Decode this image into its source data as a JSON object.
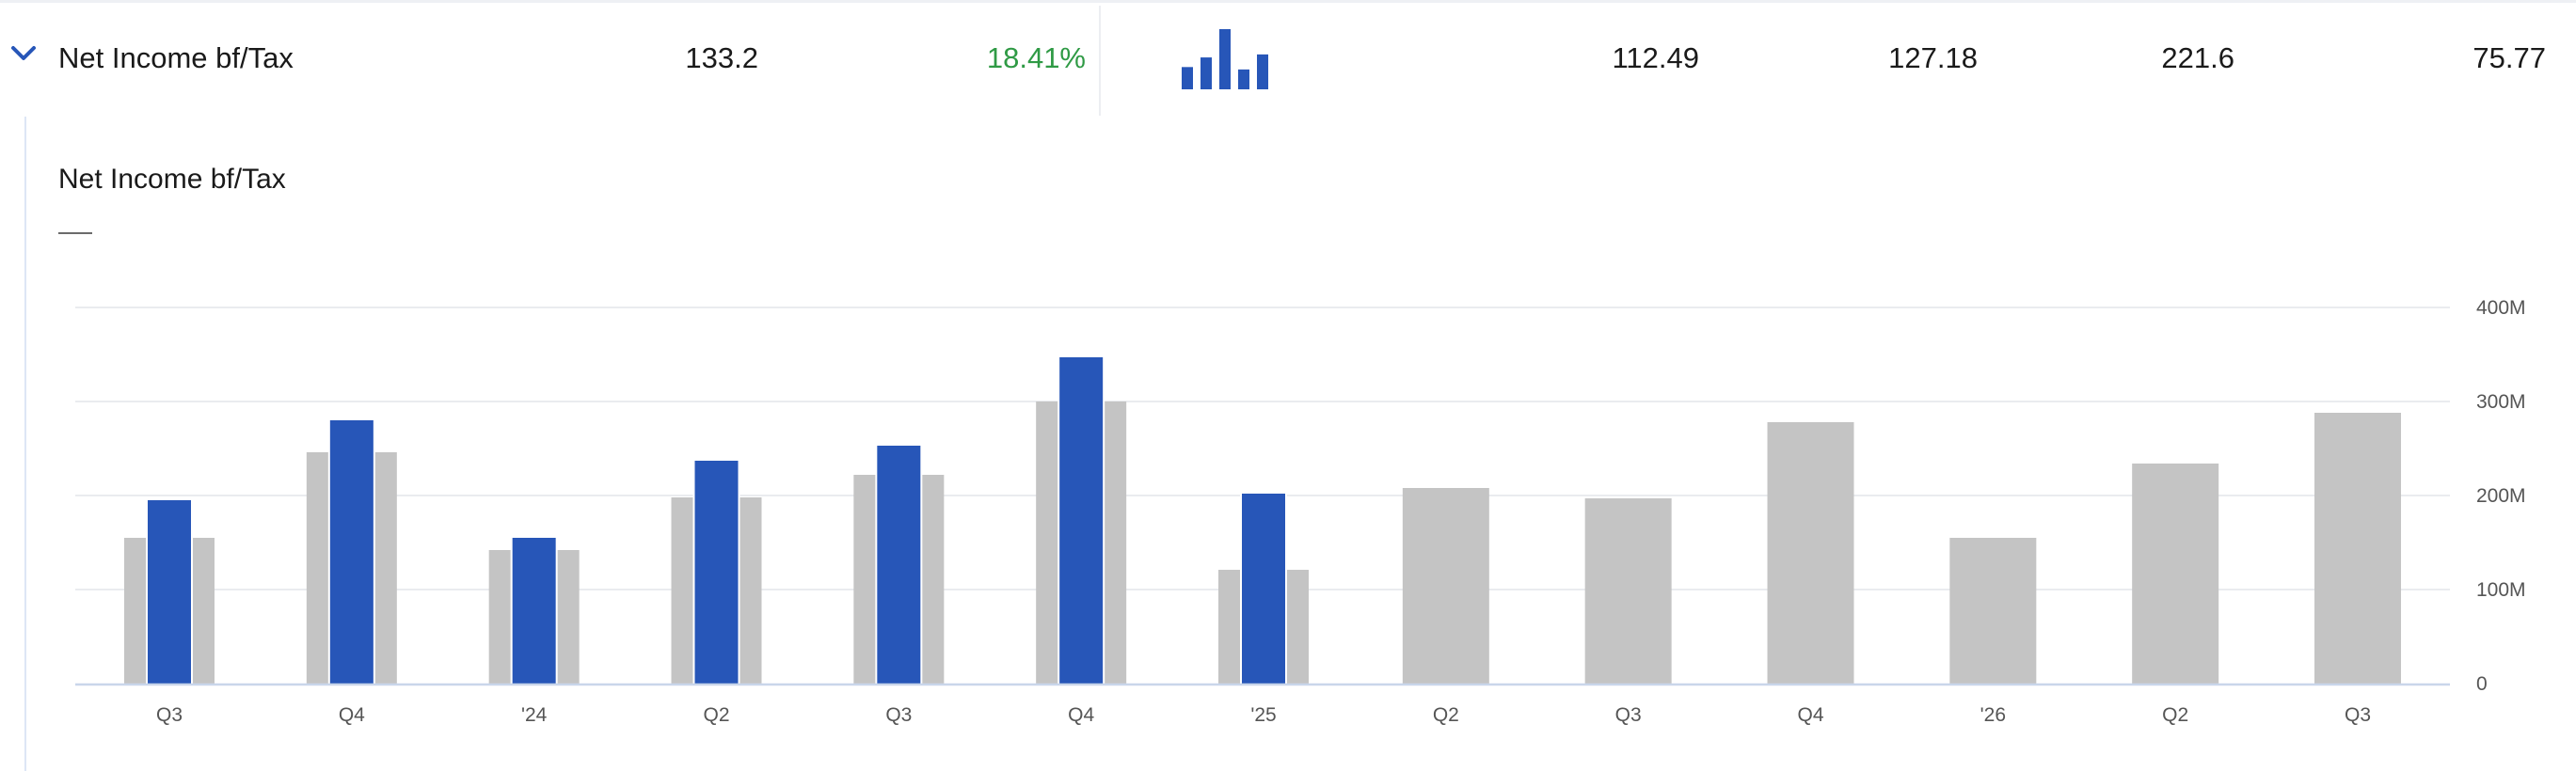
{
  "row": {
    "label": "Net Income bf/Tax",
    "value": "133.2",
    "growth": "18.41%",
    "growth_color": "#2f9a45",
    "col1": "112.49",
    "col2": "127.18",
    "col3": "221.6",
    "col4": "75.77",
    "expand_icon": "chevron-down-icon",
    "sparkline_icon": "bar-chart-icon",
    "sparkline_values": [
      0.37,
      0.53,
      1.0,
      0.33,
      0.58
    ]
  },
  "chart_data": {
    "type": "bar",
    "title": "Net Income bf/Tax",
    "categories": [
      "Q3",
      "Q4",
      "'24",
      "Q2",
      "Q3",
      "Q4",
      "'25",
      "Q2",
      "Q3",
      "Q4",
      "'26",
      "Q2",
      "Q3"
    ],
    "series": [
      {
        "values": [
          195,
          280,
          155,
          237,
          253,
          347,
          202,
          null,
          null,
          null,
          null,
          null,
          null
        ]
      },
      {
        "values": [
          155,
          246,
          142,
          198,
          222,
          300,
          121,
          208,
          197,
          278,
          155,
          234,
          288
        ]
      }
    ],
    "yticks": [
      "0",
      "100M",
      "200M",
      "300M",
      "400M"
    ],
    "ylim": [
      0,
      400
    ],
    "y_unit": "M",
    "grid": true,
    "colors": {
      "actual": "#2756b8",
      "estimate": "#c4c4c4",
      "grid": "#e4e6ea",
      "axis": "#c9d6ea",
      "tick_text": "#555555"
    }
  }
}
